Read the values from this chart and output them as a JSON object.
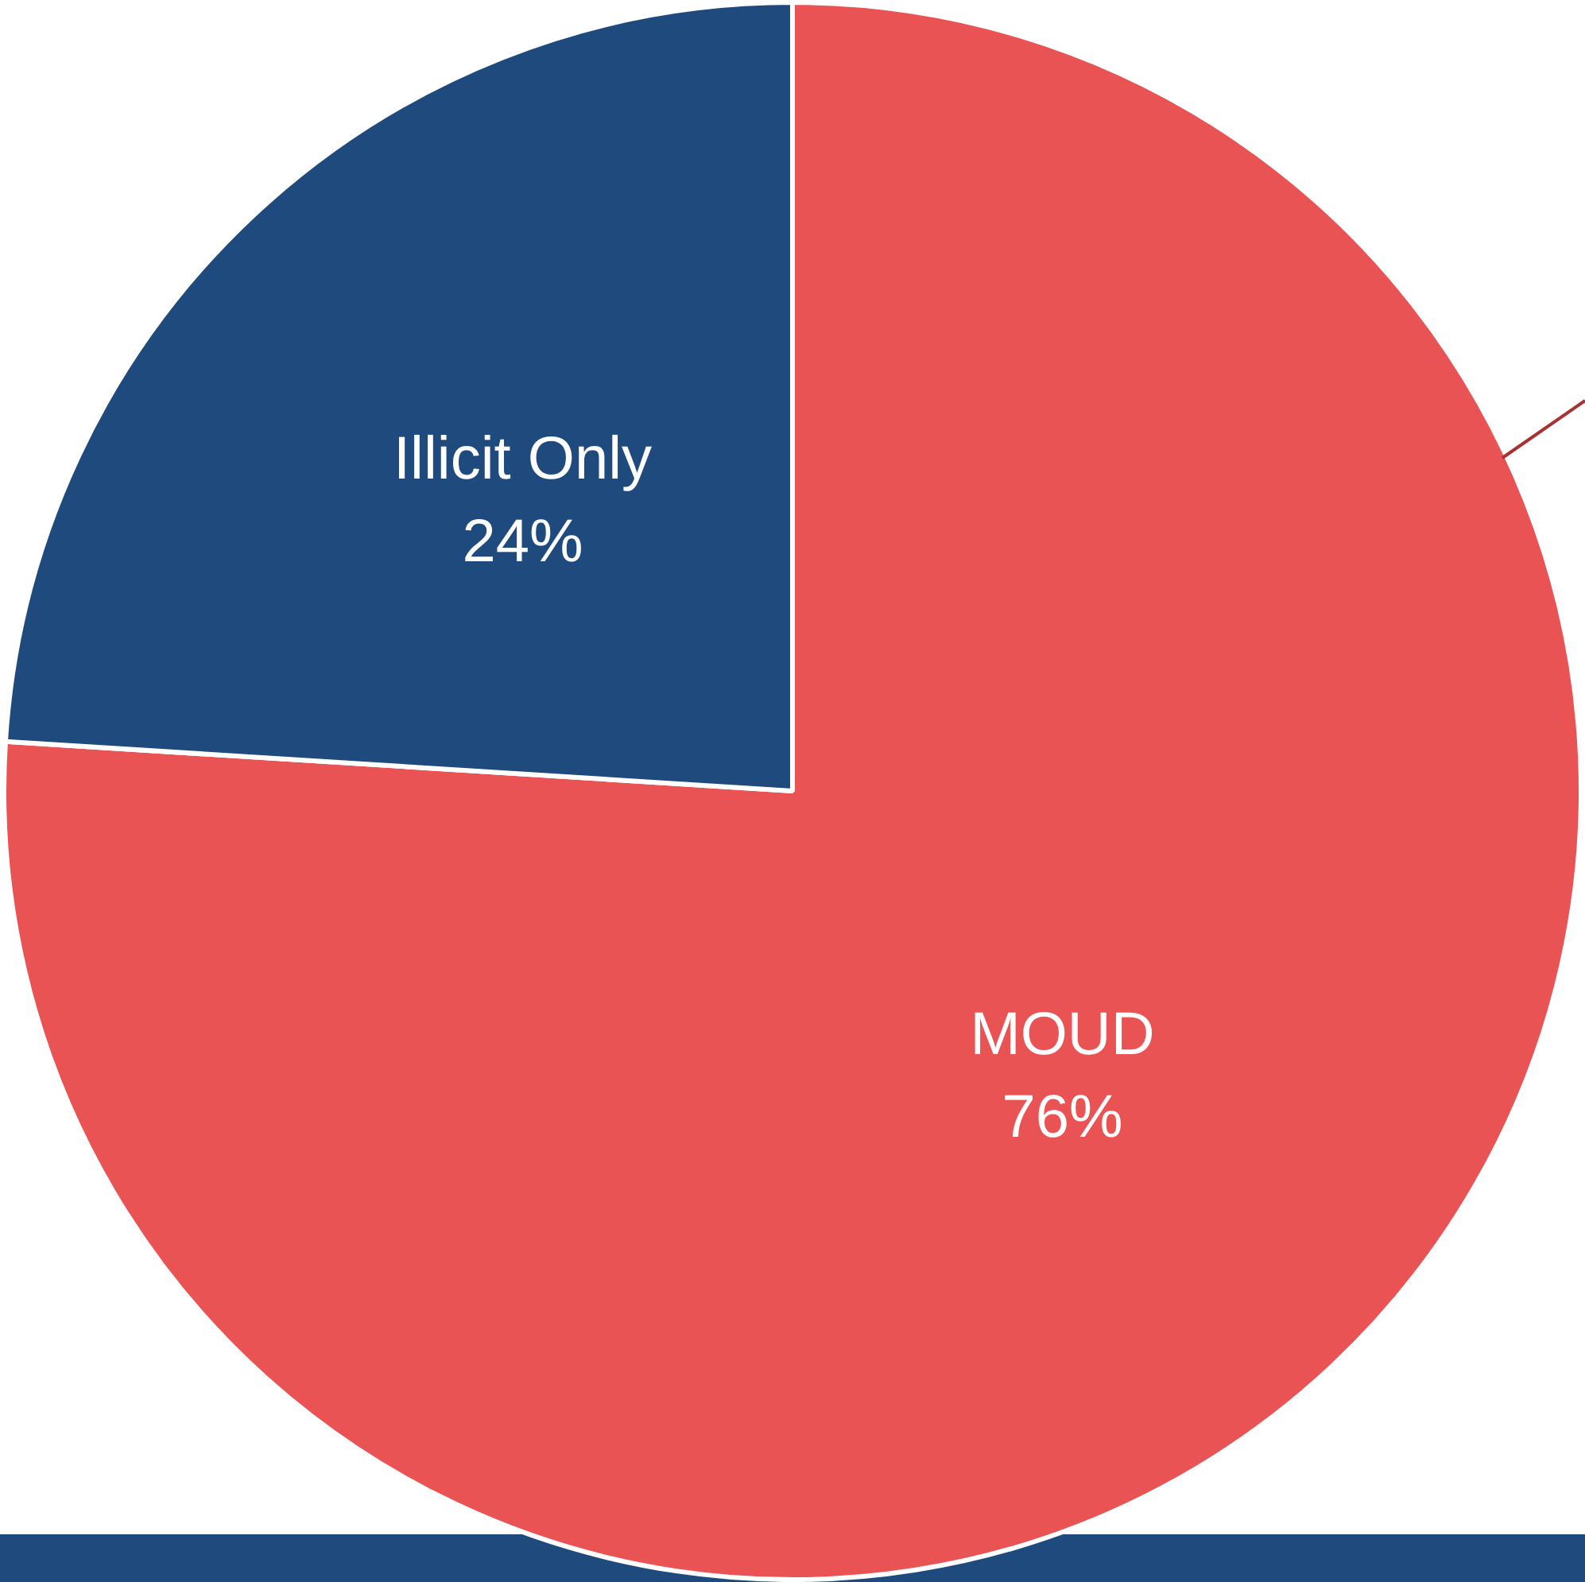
{
  "chart_data": {
    "type": "pie",
    "categories": [
      "MOUD",
      "Illicit Only"
    ],
    "values": [
      76,
      24
    ],
    "value_labels": [
      "76%",
      "24%"
    ],
    "colors": [
      "#e95353",
      "#1f4a7e"
    ],
    "legend": false
  }
}
